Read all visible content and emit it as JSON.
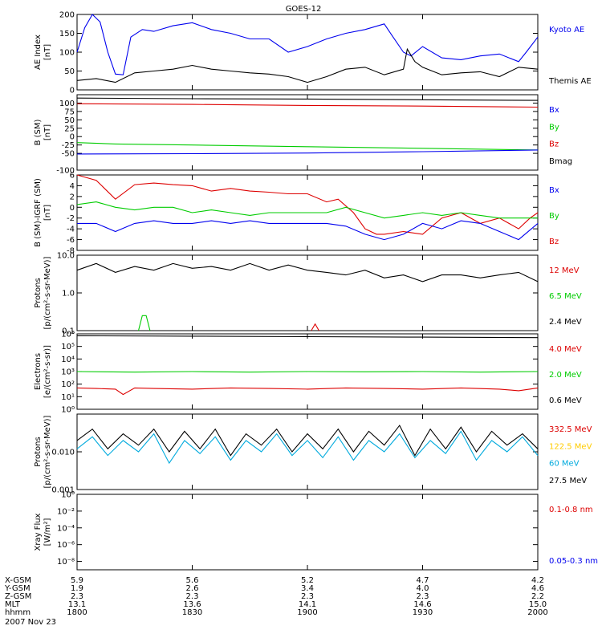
{
  "title": "GOES-12",
  "date_label": "2007 Nov 23",
  "colors": {
    "black": "#000000",
    "blue": "#0000ee",
    "green": "#00cc00",
    "red": "#dd0000",
    "cyan": "#00aadd",
    "yellow": "#ffcc00"
  },
  "chart_data": [
    {
      "type": "line",
      "id": "ae",
      "ylabel": [
        "AE Index",
        "[nT]"
      ],
      "ylim": [
        0,
        200
      ],
      "yscale": "linear",
      "ticks": [
        0,
        50,
        100,
        150,
        200
      ],
      "tick_labels": [
        "0",
        "50",
        "100",
        "150",
        "200"
      ],
      "legend": [
        {
          "label": "Kyoto AE",
          "color": "blue"
        },
        {
          "label": "Themis AE",
          "color": "black"
        }
      ],
      "series": [
        {
          "name": "Kyoto AE",
          "color": "blue",
          "x": [
            1800,
            1802,
            1804,
            1806,
            1808,
            1810,
            1812,
            1814,
            1817,
            1820,
            1825,
            1830,
            1835,
            1840,
            1845,
            1850,
            1855,
            1900,
            1905,
            1910,
            1915,
            1920,
            1922,
            1925,
            1927,
            1930,
            1935,
            1940,
            1945,
            1950,
            1955,
            1957,
            1960
          ],
          "y": [
            100,
            165,
            200,
            180,
            100,
            42,
            40,
            140,
            160,
            155,
            170,
            178,
            160,
            150,
            135,
            135,
            100,
            115,
            135,
            150,
            160,
            175,
            145,
            100,
            90,
            115,
            85,
            80,
            90,
            95,
            75,
            100,
            140
          ]
        },
        {
          "name": "Themis AE",
          "color": "black",
          "x": [
            1800,
            1805,
            1810,
            1815,
            1820,
            1825,
            1830,
            1835,
            1840,
            1845,
            1850,
            1855,
            1900,
            1905,
            1910,
            1915,
            1920,
            1925,
            1926,
            1928,
            1930,
            1935,
            1940,
            1945,
            1950,
            1955,
            1960
          ],
          "y": [
            25,
            30,
            20,
            45,
            50,
            55,
            65,
            55,
            50,
            45,
            42,
            35,
            20,
            35,
            55,
            60,
            40,
            55,
            108,
            75,
            60,
            40,
            45,
            48,
            35,
            60,
            55
          ]
        }
      ]
    },
    {
      "type": "line",
      "id": "bsm",
      "ylabel": [
        "B (SM)",
        "[nT]"
      ],
      "ylim": [
        -100,
        125
      ],
      "yscale": "linear",
      "ticks": [
        -100,
        -50,
        -25,
        0,
        25,
        50,
        75,
        100
      ],
      "tick_labels": [
        "-100",
        "-50",
        "-25",
        "0",
        "25",
        "50",
        "75",
        "100"
      ],
      "legend": [
        {
          "label": "Bx",
          "color": "blue"
        },
        {
          "label": "By",
          "color": "green"
        },
        {
          "label": "Bz",
          "color": "red"
        },
        {
          "label": "Bmag",
          "color": "black"
        }
      ],
      "series": [
        {
          "name": "Bmag",
          "color": "black",
          "x": [
            1800,
            1830,
            1900,
            1930,
            1960
          ],
          "y": [
            115,
            113,
            112,
            110,
            108
          ]
        },
        {
          "name": "Bz",
          "color": "red",
          "x": [
            1800,
            1830,
            1900,
            1930,
            1960
          ],
          "y": [
            98,
            96,
            93,
            91,
            88
          ]
        },
        {
          "name": "By",
          "color": "green",
          "x": [
            1800,
            1810,
            1830,
            1900,
            1930,
            1960
          ],
          "y": [
            -18,
            -22,
            -25,
            -30,
            -35,
            -40
          ]
        },
        {
          "name": "Bx",
          "color": "blue",
          "x": [
            1800,
            1830,
            1900,
            1930,
            1960
          ],
          "y": [
            -52,
            -51,
            -49,
            -45,
            -40
          ]
        }
      ]
    },
    {
      "type": "line",
      "id": "bdiff",
      "ylabel": [
        "B (SM)-IGRF (SM)",
        "[nT]"
      ],
      "ylim": [
        -8,
        6
      ],
      "yscale": "linear",
      "ticks": [
        -8,
        -6,
        -4,
        -2,
        0,
        2,
        4,
        6
      ],
      "tick_labels": [
        "-8",
        "-6",
        "-4",
        "-2",
        "0",
        "2",
        "4",
        "6"
      ],
      "legend": [
        {
          "label": "Bx",
          "color": "blue"
        },
        {
          "label": "By",
          "color": "green"
        },
        {
          "label": "Bz",
          "color": "red"
        }
      ],
      "series": [
        {
          "name": "Bz",
          "color": "red",
          "x": [
            1800,
            1805,
            1810,
            1815,
            1820,
            1825,
            1830,
            1835,
            1840,
            1845,
            1850,
            1855,
            1900,
            1905,
            1908,
            1912,
            1915,
            1918,
            1920,
            1925,
            1930,
            1935,
            1940,
            1945,
            1950,
            1955,
            1958,
            1960
          ],
          "y": [
            6,
            5,
            1.5,
            4.2,
            4.5,
            4.2,
            4,
            3,
            3.5,
            3,
            2.8,
            2.5,
            2.5,
            1,
            1.5,
            -1,
            -4,
            -5,
            -5,
            -4.5,
            -5,
            -2,
            -1,
            -3,
            -2,
            -4,
            -2,
            -1
          ]
        },
        {
          "name": "By",
          "color": "green",
          "x": [
            1800,
            1805,
            1810,
            1815,
            1820,
            1825,
            1830,
            1835,
            1840,
            1845,
            1850,
            1855,
            1900,
            1905,
            1910,
            1915,
            1920,
            1925,
            1930,
            1935,
            1940,
            1945,
            1950,
            1955,
            1960
          ],
          "y": [
            0.5,
            1,
            0,
            -0.5,
            0,
            0,
            -1,
            -0.5,
            -1,
            -1.5,
            -1,
            -1,
            -1,
            -1,
            0,
            -1,
            -2,
            -1.5,
            -1,
            -1.5,
            -1,
            -1.5,
            -2,
            -2,
            -2
          ]
        },
        {
          "name": "Bx",
          "color": "blue",
          "x": [
            1800,
            1805,
            1810,
            1815,
            1820,
            1825,
            1830,
            1835,
            1840,
            1845,
            1850,
            1855,
            1900,
            1905,
            1910,
            1915,
            1920,
            1925,
            1930,
            1935,
            1940,
            1945,
            1950,
            1955,
            1960
          ],
          "y": [
            -3,
            -3,
            -4.5,
            -3,
            -2.5,
            -3,
            -3,
            -2.5,
            -3,
            -2.5,
            -3,
            -3,
            -3,
            -3,
            -3.5,
            -5,
            -6,
            -5,
            -3,
            -4,
            -2.5,
            -3,
            -4.5,
            -6,
            -3
          ]
        }
      ]
    },
    {
      "type": "line",
      "id": "protons_low",
      "ylabel": [
        "Protons",
        "[p/(cm²-s-sr-MeV)]"
      ],
      "ylim": [
        0.1,
        10
      ],
      "yscale": "log",
      "ticks": [
        0.1,
        1,
        10
      ],
      "tick_labels": [
        "0.1",
        "1.0",
        "10.0"
      ],
      "legend": [
        {
          "label": "12 MeV",
          "color": "red"
        },
        {
          "label": "6.5 MeV",
          "color": "green"
        },
        {
          "label": "2.4 MeV",
          "color": "black"
        }
      ],
      "series": [
        {
          "name": "2.4 MeV",
          "color": "black",
          "x": [
            1800,
            1805,
            1810,
            1815,
            1820,
            1825,
            1830,
            1835,
            1840,
            1845,
            1850,
            1855,
            1900,
            1905,
            1910,
            1915,
            1920,
            1925,
            1930,
            1935,
            1940,
            1945,
            1950,
            1955,
            1960
          ],
          "y": [
            4,
            6,
            3.5,
            5,
            4,
            6,
            4.5,
            5,
            4,
            6,
            4,
            5.5,
            4,
            3.5,
            3,
            4,
            2.5,
            3,
            2,
            3,
            3,
            2.5,
            3,
            3.5,
            2
          ]
        },
        {
          "name": "6.5 MeV",
          "color": "green",
          "x": [
            1816,
            1817,
            1818,
            1819
          ],
          "y": [
            0.1,
            0.25,
            0.25,
            0.1
          ]
        },
        {
          "name": "12 MeV",
          "color": "red",
          "x": [
            1901,
            1902,
            1903
          ],
          "y": [
            0.1,
            0.15,
            0.1
          ]
        }
      ]
    },
    {
      "type": "line",
      "id": "electrons",
      "ylabel": [
        "Electrons",
        "[e/(cm²-s-sr)]"
      ],
      "ylim": [
        1,
        1000000
      ],
      "yscale": "log",
      "ticks": [
        1,
        10,
        100,
        1000,
        10000,
        100000,
        1000000
      ],
      "tick_labels": [
        "10⁰",
        "10¹",
        "10²",
        "10³",
        "10⁴",
        "10⁵",
        "10⁶"
      ],
      "legend": [
        {
          "label": "4.0 MeV",
          "color": "red"
        },
        {
          "label": "2.0 MeV",
          "color": "green"
        },
        {
          "label": "0.6 MeV",
          "color": "black"
        }
      ],
      "series": [
        {
          "name": "0.6 MeV",
          "color": "black",
          "x": [
            1800,
            1830,
            1900,
            1930,
            1960
          ],
          "y": [
            700000,
            650000,
            600000,
            550000,
            500000
          ]
        },
        {
          "name": "2.0 MeV",
          "color": "green",
          "x": [
            1800,
            1815,
            1830,
            1845,
            1900,
            1915,
            1930,
            1945,
            1960
          ],
          "y": [
            1000,
            900,
            1000,
            900,
            1000,
            950,
            1000,
            900,
            1000
          ]
        },
        {
          "name": "4.0 MeV",
          "color": "red",
          "x": [
            1800,
            1805,
            1810,
            1812,
            1815,
            1820,
            1830,
            1840,
            1850,
            1900,
            1910,
            1920,
            1930,
            1940,
            1950,
            1955,
            1960
          ],
          "y": [
            50,
            45,
            40,
            15,
            50,
            45,
            40,
            50,
            45,
            40,
            50,
            45,
            40,
            50,
            40,
            30,
            50
          ]
        }
      ]
    },
    {
      "type": "line",
      "id": "protons_high",
      "ylabel": [
        "Protons",
        "[p/(cm²-s-sr-MeV)]"
      ],
      "ylim": [
        0.001,
        0.1
      ],
      "yscale": "log",
      "ticks": [
        0.001,
        0.01
      ],
      "tick_labels": [
        "0.001",
        "0.010"
      ],
      "legend": [
        {
          "label": "332.5 MeV",
          "color": "red"
        },
        {
          "label": "122.5 MeV",
          "color": "yellow"
        },
        {
          "label": "60 MeV",
          "color": "cyan"
        },
        {
          "label": "27.5 MeV",
          "color": "black"
        }
      ],
      "series": [
        {
          "name": "27.5 MeV",
          "color": "black",
          "x": [
            1800,
            1804,
            1808,
            1812,
            1816,
            1820,
            1824,
            1828,
            1832,
            1836,
            1840,
            1844,
            1848,
            1852,
            1856,
            1900,
            1904,
            1908,
            1912,
            1916,
            1920,
            1924,
            1928,
            1932,
            1936,
            1940,
            1944,
            1948,
            1952,
            1956,
            1960
          ],
          "y": [
            0.02,
            0.04,
            0.012,
            0.03,
            0.015,
            0.04,
            0.01,
            0.035,
            0.012,
            0.04,
            0.008,
            0.03,
            0.015,
            0.04,
            0.01,
            0.03,
            0.012,
            0.04,
            0.01,
            0.035,
            0.015,
            0.05,
            0.008,
            0.04,
            0.012,
            0.045,
            0.01,
            0.035,
            0.015,
            0.03,
            0.012
          ]
        },
        {
          "name": "60 MeV",
          "color": "cyan",
          "x": [
            1800,
            1804,
            1808,
            1812,
            1816,
            1820,
            1824,
            1828,
            1832,
            1836,
            1840,
            1844,
            1848,
            1852,
            1856,
            1900,
            1904,
            1908,
            1912,
            1916,
            1920,
            1924,
            1928,
            1932,
            1936,
            1940,
            1944,
            1948,
            1952,
            1956,
            1960
          ],
          "y": [
            0.012,
            0.025,
            0.008,
            0.02,
            0.01,
            0.03,
            0.005,
            0.02,
            0.009,
            0.025,
            0.006,
            0.02,
            0.01,
            0.03,
            0.008,
            0.02,
            0.007,
            0.025,
            0.006,
            0.02,
            0.01,
            0.03,
            0.007,
            0.02,
            0.009,
            0.035,
            0.006,
            0.02,
            0.01,
            0.025,
            0.008
          ]
        }
      ]
    },
    {
      "type": "line",
      "id": "xray",
      "ylabel": [
        "Xray Flux",
        "[W/m²]"
      ],
      "ylim": [
        1e-09,
        1
      ],
      "yscale": "log",
      "ticks": [
        1e-08,
        1e-06,
        0.0001,
        0.01,
        1
      ],
      "tick_labels": [
        "10⁻⁸",
        "10⁻⁶",
        "10⁻⁴",
        "10⁻²",
        "10⁰"
      ],
      "legend": [
        {
          "label": "0.1-0.8 nm",
          "color": "red"
        },
        {
          "label": "0.05-0.3 nm",
          "color": "blue"
        }
      ],
      "series": []
    }
  ],
  "xaxis": {
    "xlim": [
      1800,
      1960
    ],
    "tick_positions": [
      1800,
      1830,
      1900,
      1930,
      1960
    ],
    "row_labels": [
      "X-GSM",
      "Y-GSM",
      "Z-GSM",
      "MLT",
      "hhmm"
    ],
    "rows": [
      [
        "5.9",
        "5.6",
        "5.2",
        "4.7",
        "4.2"
      ],
      [
        "1.9",
        "2.6",
        "3.4",
        "4.0",
        "4.6"
      ],
      [
        "2.3",
        "2.3",
        "2.3",
        "2.3",
        "2.2"
      ],
      [
        "13.1",
        "13.6",
        "14.1",
        "14.6",
        "15.0"
      ],
      [
        "1800",
        "1830",
        "1900",
        "1930",
        "2000"
      ]
    ]
  }
}
